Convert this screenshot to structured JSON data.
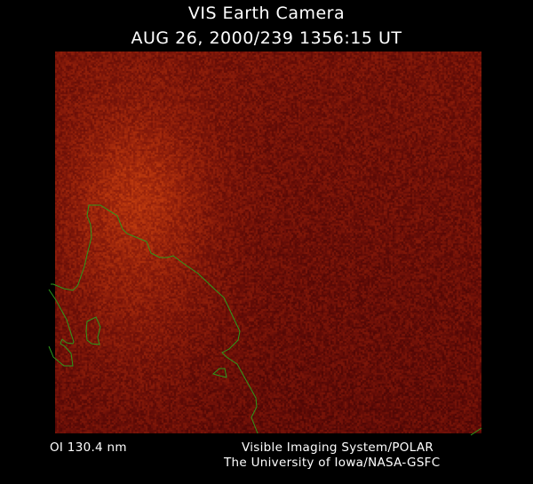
{
  "title": "VIS Earth Camera",
  "subtitle": "AUG 26, 2000/239 1356:15 UT",
  "wavelength": "OI  130.4 nm",
  "credit_line1": "Visible Imaging System/POLAR",
  "credit_line2": "The University of Iowa/NASA-GSFC",
  "colors": {
    "background": "#000000",
    "image_base": "#8a2c0a",
    "coastline": "#2e9a1c",
    "text": "#ffffff"
  }
}
